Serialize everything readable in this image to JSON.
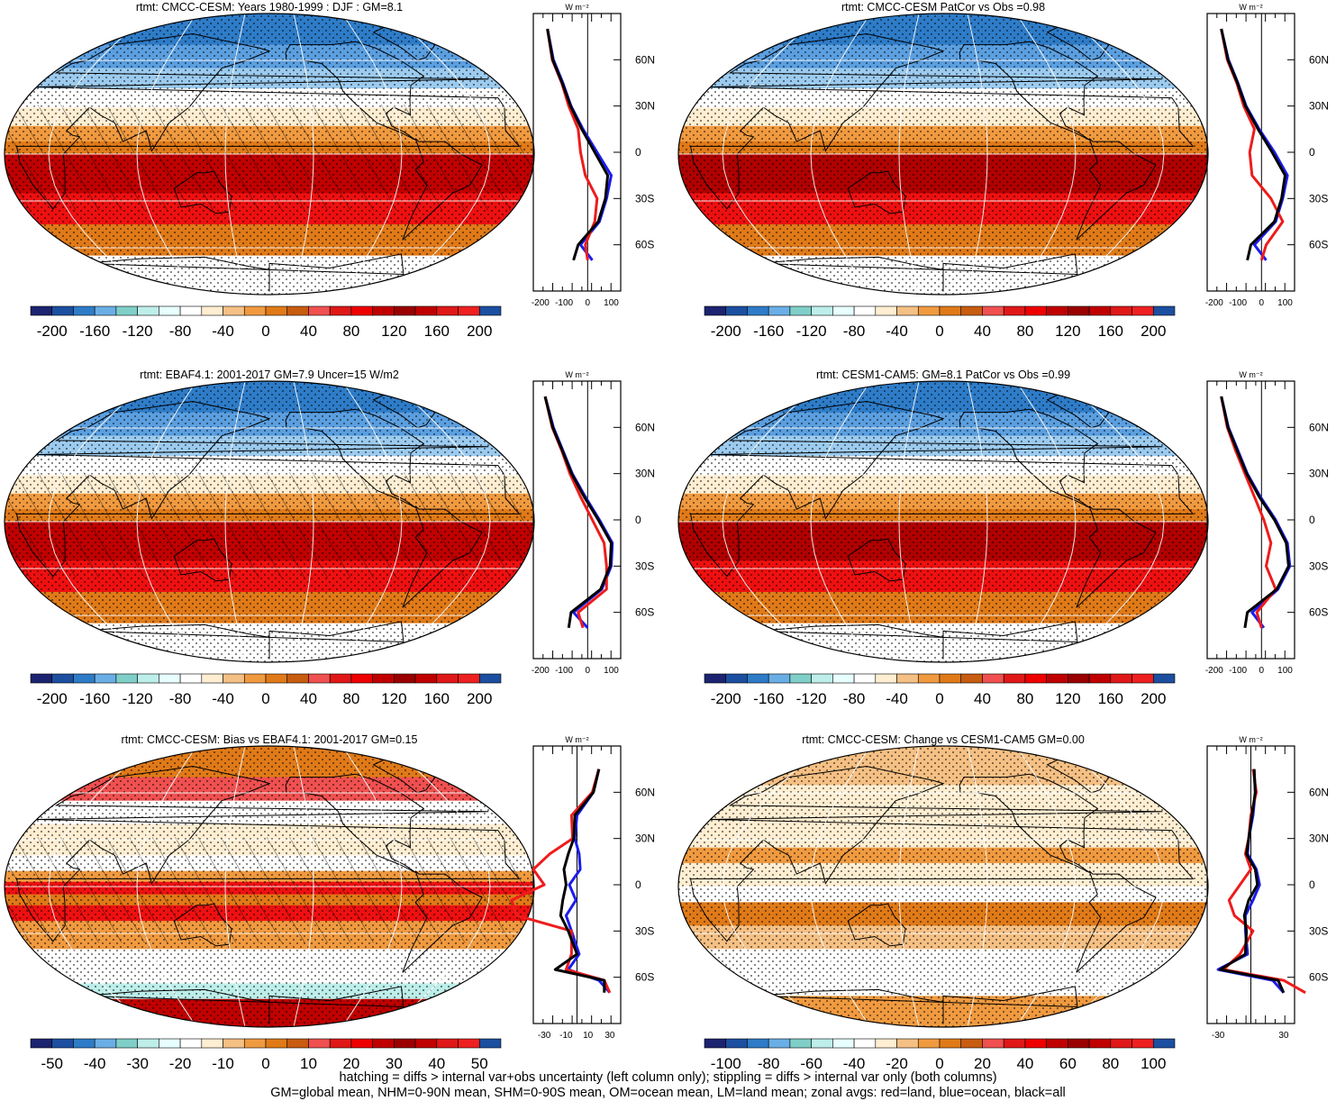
{
  "colorbar_colors": [
    "#1c2370",
    "#1c4fa0",
    "#2e7cc8",
    "#6aaee6",
    "#7fcfc8",
    "#bdeeea",
    "#e8ffff",
    "#ffffff",
    "#ffeed2",
    "#f5c084",
    "#f09a40",
    "#e07a18",
    "#c85c10",
    "#f05050",
    "#e01818",
    "#ee0000",
    "#c00000",
    "#9a0000",
    "#c00000",
    "#e01818",
    "#ee2020",
    "#1c4fa0"
  ],
  "line_colors": {
    "land": "#ee1c1c",
    "ocean": "#1c1cee",
    "all": "#000000"
  },
  "panels": [
    {
      "title": "rtmt: CMCC-CESM: Years 1980-1999 : DJF : GM=8.1",
      "cbar_labels": [
        "-200",
        "-160",
        "-120",
        "-80",
        "-40",
        "0",
        "40",
        "80",
        "120",
        "160",
        "200"
      ],
      "zonal_ticks": [
        "-200",
        "-100",
        "0",
        "100"
      ],
      "zonal_units": "W m⁻²",
      "lat_labels": [
        "60N",
        "30N",
        "0",
        "30S",
        "60S"
      ]
    },
    {
      "title": "rtmt: CMCC-CESM PatCor vs Obs =0.98",
      "cbar_labels": [
        "-200",
        "-160",
        "-120",
        "-80",
        "-40",
        "0",
        "40",
        "80",
        "120",
        "160",
        "200"
      ],
      "zonal_ticks": [
        "-200",
        "-100",
        "0",
        "100"
      ],
      "zonal_units": "W m⁻²",
      "lat_labels": [
        "60N",
        "30N",
        "0",
        "30S",
        "60S"
      ]
    },
    {
      "title": "rtmt: EBAF4.1: 2001-2017 GM=7.9 Uncer=15 W/m2",
      "cbar_labels": [
        "-200",
        "-160",
        "-120",
        "-80",
        "-40",
        "0",
        "40",
        "80",
        "120",
        "160",
        "200"
      ],
      "zonal_ticks": [
        "-200",
        "-100",
        "0",
        "100"
      ],
      "zonal_units": "W m⁻²",
      "lat_labels": [
        "60N",
        "30N",
        "0",
        "30S",
        "60S"
      ]
    },
    {
      "title": "rtmt: CESM1-CAM5: GM=8.1 PatCor vs Obs =0.99",
      "cbar_labels": [
        "-200",
        "-160",
        "-120",
        "-80",
        "-40",
        "0",
        "40",
        "80",
        "120",
        "160",
        "200"
      ],
      "zonal_ticks": [
        "-200",
        "-100",
        "0",
        "100"
      ],
      "zonal_units": "W m⁻²",
      "lat_labels": [
        "60N",
        "30N",
        "0",
        "30S",
        "60S"
      ]
    },
    {
      "title": "rtmt: CMCC-CESM: Bias vs EBAF4.1: 2001-2017 GM=0.15",
      "cbar_labels": [
        "-50",
        "-40",
        "-30",
        "-20",
        "-10",
        "0",
        "10",
        "20",
        "30",
        "40",
        "50"
      ],
      "zonal_ticks": [
        "-30",
        "-10",
        "10",
        "30"
      ],
      "zonal_units": "W m⁻²",
      "lat_labels": [
        "60N",
        "30N",
        "0",
        "30S",
        "60S"
      ]
    },
    {
      "title": "rtmt: CMCC-CESM: Change vs CESM1-CAM5 GM=0.00",
      "cbar_labels": [
        "-100",
        "-80",
        "-60",
        "-40",
        "-20",
        "0",
        "20",
        "40",
        "60",
        "80",
        "100"
      ],
      "zonal_ticks": [
        "-30",
        "30"
      ],
      "zonal_units": "W m⁻²",
      "lat_labels": [
        "60N",
        "30N",
        "0",
        "30S",
        "60S"
      ]
    }
  ],
  "footer": {
    "line1": "hatching = diffs > internal var+obs uncertainty (left column only); stippling = diffs > internal var only (both columns)",
    "line2": "GM=global mean, NHM=0-90N mean, SHM=0-90S mean, OM=ocean mean, LM=land mean; zonal avgs: red=land, blue=ocean, black=all"
  },
  "chart_data": [
    {
      "type": "heatmap",
      "title": "rtmt: CMCC-CESM: Years 1980-1999 : DJF : GM=8.1",
      "colorbar_range": [
        -200,
        200
      ],
      "zonal_mean": {
        "lat": [
          80,
          60,
          45,
          30,
          15,
          0,
          -15,
          -30,
          -45,
          -60,
          -70
        ],
        "land": [
          -170,
          -150,
          -110,
          -80,
          -40,
          -30,
          -10,
          40,
          30,
          -10,
          0
        ],
        "ocean": [
          -170,
          -145,
          -105,
          -70,
          -20,
          40,
          100,
          80,
          50,
          -30,
          20
        ],
        "all": [
          -170,
          -148,
          -108,
          -72,
          -25,
          30,
          85,
          75,
          45,
          -40,
          -60
        ]
      }
    },
    {
      "type": "heatmap",
      "title": "rtmt: CMCC-CESM PatCor vs Obs =0.98",
      "colorbar_range": [
        -200,
        200
      ],
      "zonal_mean": {
        "lat": [
          80,
          60,
          45,
          30,
          15,
          0,
          -15,
          -30,
          -45,
          -60,
          -70
        ],
        "land": [
          -170,
          -145,
          -105,
          -75,
          -30,
          -50,
          -40,
          40,
          90,
          20,
          0
        ],
        "ocean": [
          -170,
          -140,
          -100,
          -65,
          -10,
          55,
          110,
          90,
          60,
          -30,
          20
        ],
        "all": [
          -170,
          -142,
          -102,
          -68,
          -15,
          45,
          100,
          85,
          55,
          -45,
          -60
        ]
      }
    },
    {
      "type": "heatmap",
      "title": "rtmt: EBAF4.1: 2001-2017 GM=7.9 Uncer=15 W/m2",
      "colorbar_range": [
        -200,
        200
      ],
      "zonal_mean": {
        "lat": [
          80,
          60,
          45,
          30,
          15,
          0,
          -15,
          -30,
          -45,
          -60,
          -70
        ],
        "land": [
          -180,
          -150,
          -110,
          -75,
          -30,
          20,
          70,
          80,
          80,
          -40,
          -20
        ],
        "ocean": [
          -180,
          -145,
          -105,
          -65,
          -10,
          50,
          105,
          100,
          60,
          -60,
          0
        ],
        "all": [
          -180,
          -148,
          -107,
          -68,
          -15,
          45,
          100,
          95,
          55,
          -70,
          -80
        ]
      }
    },
    {
      "type": "heatmap",
      "title": "rtmt: CESM1-CAM5: GM=8.1 PatCor vs Obs =0.99",
      "colorbar_range": [
        -200,
        200
      ],
      "zonal_mean": {
        "lat": [
          80,
          60,
          45,
          30,
          15,
          0,
          -15,
          -30,
          -45,
          -60,
          -70
        ],
        "land": [
          -170,
          -145,
          -110,
          -70,
          -30,
          10,
          40,
          20,
          60,
          -20,
          0
        ],
        "ocean": [
          -170,
          -140,
          -100,
          -60,
          -5,
          60,
          110,
          120,
          70,
          -40,
          10
        ],
        "all": [
          -170,
          -142,
          -103,
          -63,
          -10,
          55,
          105,
          115,
          65,
          -60,
          -70
        ]
      }
    },
    {
      "type": "heatmap",
      "title": "rtmt: CMCC-CESM: Bias vs EBAF4.1: 2001-2017 GM=0.15",
      "colorbar_range": [
        -50,
        50
      ],
      "zonal_mean": {
        "lat": [
          75,
          60,
          45,
          30,
          20,
          10,
          0,
          -10,
          -20,
          -30,
          -45,
          -55,
          -62,
          -70
        ],
        "land": [
          20,
          14,
          -5,
          -4,
          -25,
          -40,
          -30,
          -60,
          -55,
          -5,
          -5,
          -10,
          25,
          30
        ],
        "ocean": [
          20,
          15,
          0,
          -2,
          2,
          3,
          -7,
          -1,
          -10,
          -5,
          2,
          -8,
          20,
          30
        ],
        "all": [
          20,
          15,
          -2,
          -3,
          -8,
          -12,
          -10,
          -13,
          -15,
          -8,
          0,
          -20,
          25,
          25
        ]
      }
    },
    {
      "type": "heatmap",
      "title": "rtmt: CMCC-CESM: Change vs CESM1-CAM5 GM=0.00",
      "colorbar_range": [
        -100,
        100
      ],
      "zonal_mean": {
        "lat": [
          75,
          60,
          45,
          30,
          20,
          10,
          0,
          -10,
          -20,
          -30,
          -45,
          -55,
          -62,
          -70
        ],
        "land": [
          2,
          5,
          0,
          -2,
          -5,
          0,
          -10,
          -20,
          -15,
          2,
          -10,
          -25,
          30,
          50
        ],
        "ocean": [
          3,
          4,
          2,
          -2,
          -3,
          5,
          8,
          2,
          -5,
          -5,
          -3,
          -30,
          20,
          30
        ],
        "all": [
          3,
          4,
          1,
          -2,
          -4,
          4,
          6,
          -2,
          -6,
          -4,
          -5,
          -28,
          25,
          30
        ]
      }
    }
  ]
}
